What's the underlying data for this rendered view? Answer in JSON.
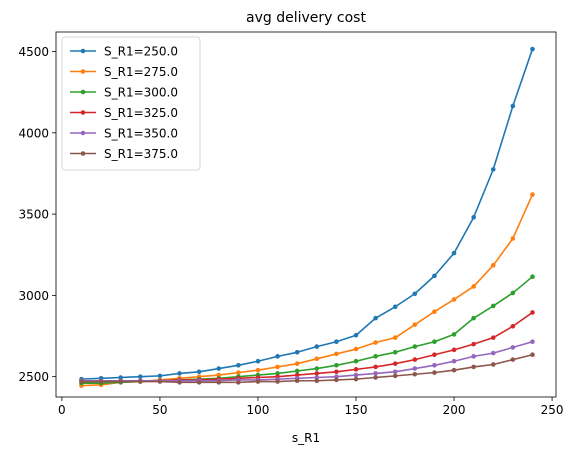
{
  "chart_data": {
    "type": "line",
    "title": "avg delivery cost",
    "xlabel": "s_R1",
    "ylabel": "",
    "xlim": [
      -3,
      252
    ],
    "ylim": [
      2375,
      4620
    ],
    "xticks": [
      0,
      50,
      100,
      150,
      200,
      250
    ],
    "yticks": [
      2500,
      3000,
      3500,
      4000,
      4500
    ],
    "grid": false,
    "legend_position": "top-left",
    "x": [
      10,
      20,
      30,
      40,
      50,
      60,
      70,
      80,
      90,
      100,
      110,
      120,
      130,
      140,
      150,
      160,
      170,
      180,
      190,
      200,
      210,
      220,
      230,
      240
    ],
    "series": [
      {
        "name": "S_R1=250.0",
        "color": "#1f77b4",
        "values": [
          2485,
          2490,
          2495,
          2500,
          2505,
          2520,
          2530,
          2550,
          2570,
          2595,
          2625,
          2650,
          2685,
          2715,
          2755,
          2860,
          2930,
          3010,
          3120,
          3260,
          3480,
          3775,
          4165,
          4515
        ]
      },
      {
        "name": "S_R1=275.0",
        "color": "#ff7f0e",
        "values": [
          2445,
          2450,
          2465,
          2470,
          2480,
          2490,
          2500,
          2510,
          2525,
          2540,
          2560,
          2580,
          2610,
          2640,
          2670,
          2710,
          2740,
          2820,
          2900,
          2975,
          3055,
          3185,
          3350,
          3620
        ]
      },
      {
        "name": "S_R1=300.0",
        "color": "#2ca02c",
        "values": [
          2460,
          2460,
          2465,
          2470,
          2475,
          2480,
          2485,
          2490,
          2500,
          2510,
          2520,
          2535,
          2550,
          2570,
          2595,
          2625,
          2650,
          2685,
          2715,
          2760,
          2860,
          2935,
          3015,
          3115
        ]
      },
      {
        "name": "S_R1=325.0",
        "color": "#d62728",
        "values": [
          2470,
          2470,
          2475,
          2475,
          2475,
          2480,
          2480,
          2485,
          2490,
          2495,
          2500,
          2510,
          2520,
          2530,
          2545,
          2560,
          2580,
          2605,
          2635,
          2665,
          2700,
          2740,
          2810,
          2895
        ]
      },
      {
        "name": "S_R1=350.0",
        "color": "#9467bd",
        "values": [
          2475,
          2475,
          2475,
          2475,
          2475,
          2475,
          2475,
          2475,
          2480,
          2480,
          2485,
          2490,
          2495,
          2500,
          2510,
          2520,
          2530,
          2550,
          2570,
          2595,
          2625,
          2645,
          2680,
          2715
        ]
      },
      {
        "name": "S_R1=375.0",
        "color": "#8c564b",
        "values": [
          2470,
          2470,
          2470,
          2470,
          2470,
          2465,
          2465,
          2465,
          2465,
          2470,
          2470,
          2475,
          2475,
          2480,
          2485,
          2495,
          2505,
          2515,
          2525,
          2540,
          2560,
          2575,
          2605,
          2635
        ]
      }
    ]
  }
}
